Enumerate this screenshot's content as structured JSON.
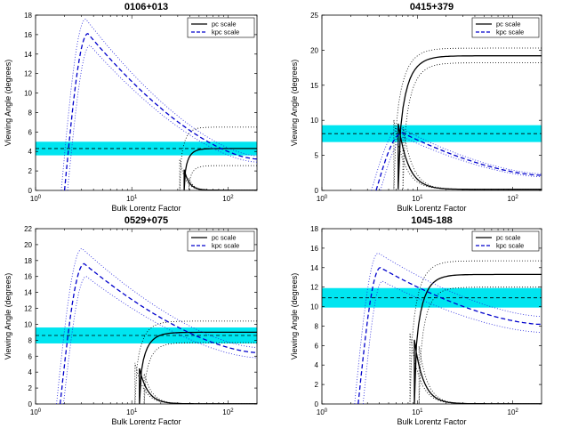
{
  "figure": {
    "legend": {
      "solid": "pc scale",
      "dashed": "kpc scale"
    }
  },
  "chart_data": [
    {
      "type": "line",
      "title": "0106+013",
      "xlabel": "Bulk Lorentz Factor",
      "ylabel": "Viewing Angle (degrees)",
      "xscale": "log",
      "xlim": [
        1,
        200
      ],
      "ylim": [
        0,
        18
      ],
      "yticks": [
        0,
        2,
        4,
        6,
        8,
        10,
        12,
        14,
        16,
        18
      ],
      "xticks": [
        {
          "v": 1,
          "b": "10",
          "e": "0"
        },
        {
          "v": 10,
          "b": "10",
          "e": "1"
        },
        {
          "v": 100,
          "b": "10",
          "e": "2"
        }
      ],
      "legend_position": "top-right",
      "band": {
        "y_low": 3.6,
        "y_high": 5.0,
        "center": 4.3
      },
      "series": [
        {
          "name": "pc scale",
          "style": "solid",
          "color": "#000000",
          "gmin": 35,
          "tmax": 4.3,
          "tmin": 0.02,
          "lo": 2.55,
          "hi": 6.5
        },
        {
          "name": "kpc scale",
          "style": "dashed",
          "color": "#0000cc",
          "gmin": 2.0,
          "tmax": 4.3,
          "tmin": 0.5,
          "peak": 16.1,
          "gpeak": 3.5,
          "hi_peak": 17.6,
          "lo_peak": 14.9,
          "g_hi": 1.85,
          "g_lo": 2.15
        }
      ]
    },
    {
      "type": "line",
      "title": "0415+379",
      "xlabel": "Bulk Lorentz Factor",
      "ylabel": "Viewing Angle (degrees)",
      "xscale": "log",
      "xlim": [
        1,
        200
      ],
      "ylim": [
        0,
        25
      ],
      "yticks": [
        0,
        5,
        10,
        15,
        20,
        25
      ],
      "xticks": [
        {
          "v": 1,
          "b": "10",
          "e": "0"
        },
        {
          "v": 10,
          "b": "10",
          "e": "1"
        },
        {
          "v": 100,
          "b": "10",
          "e": "2"
        }
      ],
      "legend_position": "top-right",
      "band": {
        "y_low": 6.9,
        "y_high": 9.3,
        "center": 8.1
      },
      "series": [
        {
          "name": "pc scale",
          "style": "solid",
          "color": "#000000",
          "gmin": 6.3,
          "tmax": 19.2,
          "tmin": 0.15,
          "lo": 18.2,
          "hi": 20.3
        },
        {
          "name": "kpc scale",
          "style": "dashed",
          "color": "#0000cc",
          "gmin": 3.7,
          "tmax": 8.0,
          "tmin": 2.2,
          "peak": 8.2,
          "gpeak": 7.0,
          "hi_peak": 8.9,
          "lo_peak": 7.5,
          "g_hi": 3.3,
          "g_lo": 4.1
        }
      ]
    },
    {
      "type": "line",
      "title": "0529+075",
      "xlabel": "Bulk Lorentz Factor",
      "ylabel": "Viewing Angle (degrees)",
      "xscale": "log",
      "xlim": [
        1,
        200
      ],
      "ylim": [
        0,
        22
      ],
      "yticks": [
        0,
        2,
        4,
        6,
        8,
        10,
        12,
        14,
        16,
        18,
        20,
        22
      ],
      "xticks": [
        {
          "v": 1,
          "b": "10",
          "e": "0"
        },
        {
          "v": 10,
          "b": "10",
          "e": "1"
        },
        {
          "v": 100,
          "b": "10",
          "e": "2"
        }
      ],
      "legend_position": "top-right",
      "band": {
        "y_low": 7.6,
        "y_high": 9.6,
        "center": 8.6
      },
      "series": [
        {
          "name": "pc scale",
          "style": "solid",
          "color": "#000000",
          "gmin": 12,
          "tmax": 9.0,
          "tmin": 0.02,
          "lo": 7.7,
          "hi": 10.4
        },
        {
          "name": "kpc scale",
          "style": "dashed",
          "color": "#0000cc",
          "gmin": 1.8,
          "tmax": 8.6,
          "tmin": 0.5,
          "peak": 17.6,
          "gpeak": 3.2,
          "hi_peak": 19.5,
          "lo_peak": 16.0,
          "g_hi": 1.65,
          "g_lo": 1.95
        }
      ]
    },
    {
      "type": "line",
      "title": "1045-188",
      "xlabel": "Bulk Lorentz Factor",
      "ylabel": "Viewing Angle (degrees)",
      "xscale": "log",
      "xlim": [
        1,
        200
      ],
      "ylim": [
        0,
        18
      ],
      "yticks": [
        0,
        2,
        4,
        6,
        8,
        10,
        12,
        14,
        16,
        18
      ],
      "xticks": [
        {
          "v": 1,
          "b": "10",
          "e": "0"
        },
        {
          "v": 10,
          "b": "10",
          "e": "1"
        },
        {
          "v": 100,
          "b": "10",
          "e": "2"
        }
      ],
      "legend_position": "top-right",
      "band": {
        "y_low": 9.9,
        "y_high": 11.9,
        "center": 10.9
      },
      "series": [
        {
          "name": "pc scale",
          "style": "solid",
          "color": "#000000",
          "gmin": 9.3,
          "tmax": 13.3,
          "tmin": 0.02,
          "lo": 12.0,
          "hi": 14.7
        },
        {
          "name": "kpc scale",
          "style": "dashed",
          "color": "#0000cc",
          "gmin": 2.4,
          "tmax": 10.9,
          "tmin": 0.5,
          "peak": 14.0,
          "gpeak": 4.1,
          "hi_peak": 15.5,
          "lo_peak": 12.6,
          "g_hi": 2.2,
          "g_lo": 2.7
        }
      ]
    }
  ]
}
